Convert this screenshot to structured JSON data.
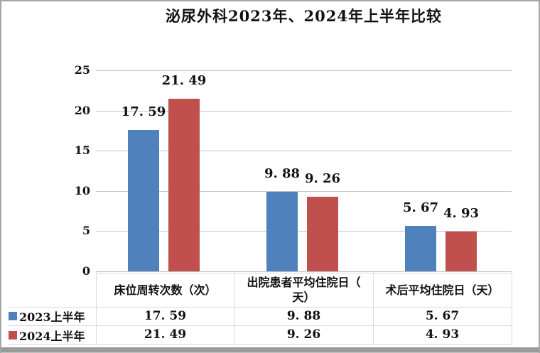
{
  "window": {
    "background": "#ffffff",
    "frame_border_color": "#a6a6a6",
    "bottom_edge_color": "#9b9b9b",
    "gridline_color": "#c3c3c3",
    "table_border_color": "#dadada"
  },
  "chart_data": {
    "type": "bar",
    "title": "泌尿外科2023年、2024年上半年比较",
    "categories": [
      "床位周转次数（次）",
      "出院患者平均住院日（天）",
      "术后平均住院日（天）"
    ],
    "categories_display": [
      "床位周转次数（次）",
      "出院患者平均住院日（\n天）",
      "术后平均住院日（天）"
    ],
    "series": [
      {
        "name": "2023上半年",
        "color": "#4f81bd",
        "values": [
          17.59,
          9.88,
          5.67
        ],
        "labels": [
          "17. 59",
          "9. 88",
          "5. 67"
        ]
      },
      {
        "name": "2024上半年",
        "color": "#c0504d",
        "values": [
          21.49,
          9.26,
          4.93
        ],
        "labels": [
          "21. 49",
          "9. 26",
          "4. 93"
        ]
      }
    ],
    "y_axis": {
      "min": 0,
      "max": 25,
      "step": 5,
      "tick_labels": [
        "25",
        "20",
        "15",
        "10",
        "5",
        "0"
      ]
    },
    "grid": true,
    "legend_position": "data-table-left",
    "data_table_shown": true
  }
}
